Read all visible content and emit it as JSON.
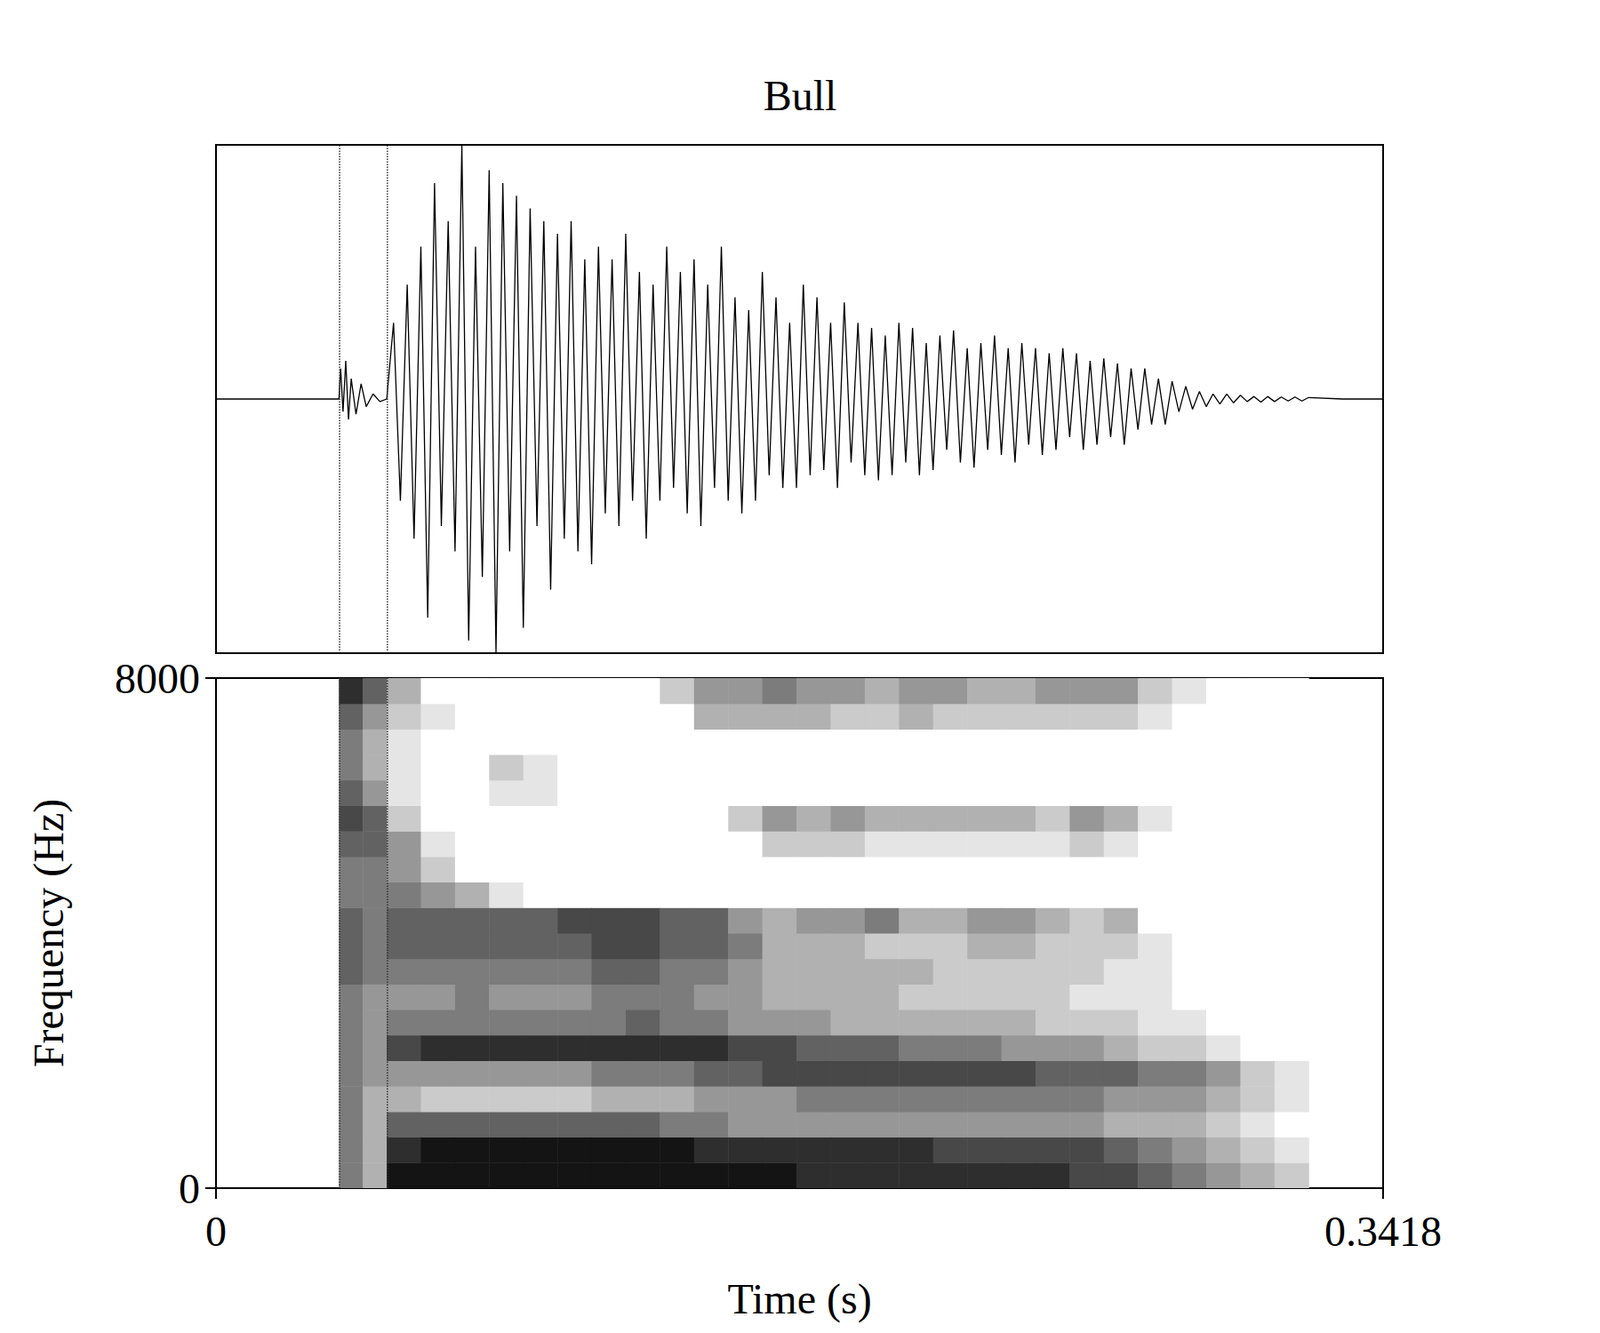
{
  "chart_data": [
    {
      "type": "line",
      "title": "Bull",
      "color": "#000000",
      "tick_labels": false,
      "xlim": [
        0,
        0.3418
      ],
      "ylim": [
        -1,
        1
      ],
      "boundaries": [
        0.0362,
        0.0502
      ],
      "x": [
        0,
        0.036,
        0.0365,
        0.0372,
        0.038,
        0.0388,
        0.0396,
        0.041,
        0.0425,
        0.044,
        0.046,
        0.048,
        0.05,
        0.052,
        0.054,
        0.056,
        0.058,
        0.06,
        0.062,
        0.064,
        0.066,
        0.068,
        0.07,
        0.072,
        0.074,
        0.076,
        0.078,
        0.08,
        0.082,
        0.084,
        0.086,
        0.088,
        0.09,
        0.092,
        0.094,
        0.096,
        0.098,
        0.1,
        0.102,
        0.104,
        0.106,
        0.108,
        0.11,
        0.112,
        0.114,
        0.116,
        0.118,
        0.12,
        0.122,
        0.124,
        0.126,
        0.128,
        0.13,
        0.132,
        0.134,
        0.136,
        0.138,
        0.14,
        0.142,
        0.144,
        0.146,
        0.148,
        0.15,
        0.152,
        0.154,
        0.156,
        0.158,
        0.16,
        0.162,
        0.164,
        0.166,
        0.168,
        0.17,
        0.172,
        0.174,
        0.176,
        0.178,
        0.18,
        0.182,
        0.184,
        0.186,
        0.188,
        0.19,
        0.192,
        0.194,
        0.196,
        0.198,
        0.2,
        0.202,
        0.204,
        0.206,
        0.208,
        0.21,
        0.212,
        0.214,
        0.216,
        0.218,
        0.22,
        0.222,
        0.224,
        0.226,
        0.228,
        0.23,
        0.232,
        0.234,
        0.236,
        0.238,
        0.24,
        0.242,
        0.244,
        0.246,
        0.248,
        0.25,
        0.252,
        0.254,
        0.256,
        0.258,
        0.26,
        0.262,
        0.264,
        0.266,
        0.268,
        0.27,
        0.272,
        0.274,
        0.276,
        0.278,
        0.28,
        0.282,
        0.284,
        0.286,
        0.288,
        0.29,
        0.292,
        0.294,
        0.296,
        0.298,
        0.3,
        0.302,
        0.304,
        0.306,
        0.308,
        0.31,
        0.312,
        0.314,
        0.316,
        0.318,
        0.32,
        0.33,
        0.3418
      ],
      "values": [
        0,
        0,
        0.12,
        -0.05,
        0.15,
        -0.08,
        0.08,
        -0.06,
        0.06,
        -0.03,
        0.02,
        -0.01,
        0,
        0.3,
        -0.4,
        0.45,
        -0.55,
        0.6,
        -0.86,
        0.85,
        -0.5,
        0.7,
        -0.6,
        1.0,
        -0.95,
        0.6,
        -0.7,
        0.9,
        -1.0,
        0.85,
        -0.6,
        0.8,
        -0.9,
        0.75,
        -0.5,
        0.7,
        -0.75,
        0.65,
        -0.55,
        0.7,
        -0.6,
        0.55,
        -0.65,
        0.6,
        -0.45,
        0.55,
        -0.5,
        0.65,
        -0.4,
        0.5,
        -0.55,
        0.45,
        -0.4,
        0.6,
        -0.35,
        0.5,
        -0.45,
        0.55,
        -0.5,
        0.45,
        -0.35,
        0.6,
        -0.4,
        0.4,
        -0.45,
        0.35,
        -0.4,
        0.5,
        -0.3,
        0.4,
        -0.35,
        0.3,
        -0.35,
        0.45,
        -0.3,
        0.4,
        -0.28,
        0.3,
        -0.35,
        0.38,
        -0.25,
        0.3,
        -0.3,
        0.28,
        -0.32,
        0.25,
        -0.3,
        0.3,
        -0.25,
        0.28,
        -0.3,
        0.22,
        -0.28,
        0.25,
        -0.2,
        0.27,
        -0.25,
        0.2,
        -0.27,
        0.22,
        -0.2,
        0.25,
        -0.22,
        0.2,
        -0.25,
        0.22,
        -0.18,
        0.2,
        -0.22,
        0.18,
        -0.2,
        0.2,
        -0.15,
        0.18,
        -0.2,
        0.15,
        -0.18,
        0.16,
        -0.15,
        0.14,
        -0.18,
        0.12,
        -0.12,
        0.12,
        -0.1,
        0.08,
        -0.1,
        0.07,
        -0.05,
        0.05,
        -0.04,
        0.03,
        -0.03,
        0.02,
        -0.02,
        0.02,
        -0.015,
        0.015,
        -0.01,
        0.01,
        -0.012,
        0.01,
        -0.01,
        0.008,
        -0.008,
        0.008,
        -0.008,
        0.006,
        0,
        0
      ]
    },
    {
      "type": "heatmap",
      "xlabel": "Time (s)",
      "ylabel": "Frequency (Hz)",
      "xlim": [
        0,
        0.3418
      ],
      "xticks": [
        0,
        0.3418
      ],
      "ylim": [
        0,
        8000
      ],
      "yticks": [
        0,
        8000
      ],
      "boundaries": [
        0.0362,
        0.0502
      ],
      "time_edges": [
        0.036,
        0.043,
        0.05,
        0.06,
        0.07,
        0.08,
        0.09,
        0.1,
        0.11,
        0.12,
        0.13,
        0.14,
        0.15,
        0.16,
        0.17,
        0.18,
        0.19,
        0.2,
        0.21,
        0.22,
        0.23,
        0.24,
        0.25,
        0.26,
        0.27,
        0.28,
        0.29,
        0.3,
        0.31,
        0.32
      ],
      "freq_edges": [
        0,
        400,
        800,
        1200,
        1600,
        2000,
        2400,
        2800,
        3200,
        3600,
        4000,
        4400,
        4800,
        5200,
        5600,
        6000,
        6400,
        6800,
        7200,
        7600,
        8000
      ],
      "cells": [
        [
          5,
          5,
          5,
          5,
          5,
          5,
          5,
          5,
          6,
          6,
          6,
          5,
          5,
          6,
          7,
          6,
          5,
          5,
          6,
          8
        ],
        [
          3,
          3,
          3,
          3,
          4,
          4,
          4,
          4,
          5,
          5,
          5,
          5,
          5,
          6,
          6,
          4,
          3,
          3,
          4,
          6
        ],
        [
          9,
          8,
          6,
          3,
          4,
          7,
          5,
          4,
          5,
          6,
          6,
          5,
          4,
          4,
          2,
          1,
          1,
          1,
          2,
          3
        ],
        [
          9,
          9,
          6,
          2,
          4,
          8,
          5,
          4,
          5,
          6,
          6,
          4,
          2,
          1,
          0,
          0,
          0,
          0,
          1,
          0
        ],
        [
          9,
          9,
          6,
          2,
          4,
          8,
          5,
          5,
          5,
          6,
          6,
          3,
          0,
          0,
          0,
          0,
          0,
          0,
          0,
          0
        ],
        [
          9,
          9,
          6,
          2,
          4,
          8,
          5,
          4,
          5,
          6,
          6,
          1,
          0,
          0,
          0,
          1,
          2,
          0,
          0,
          0
        ],
        [
          9,
          9,
          6,
          2,
          4,
          8,
          5,
          4,
          5,
          6,
          6,
          0,
          0,
          0,
          0,
          1,
          1,
          0,
          0,
          0
        ],
        [
          9,
          9,
          6,
          2,
          4,
          8,
          5,
          4,
          5,
          6,
          7,
          0,
          0,
          0,
          0,
          0,
          0,
          0,
          0,
          0
        ],
        [
          9,
          9,
          6,
          3,
          5,
          8,
          5,
          5,
          6,
          7,
          7,
          0,
          0,
          0,
          0,
          0,
          0,
          0,
          0,
          0
        ],
        [
          9,
          9,
          6,
          3,
          5,
          8,
          6,
          5,
          6,
          7,
          7,
          0,
          0,
          0,
          0,
          0,
          0,
          0,
          0,
          0
        ],
        [
          9,
          9,
          5,
          3,
          5,
          8,
          5,
          5,
          5,
          6,
          6,
          0,
          0,
          0,
          0,
          0,
          0,
          0,
          0,
          2
        ],
        [
          9,
          8,
          5,
          4,
          6,
          8,
          5,
          4,
          5,
          6,
          6,
          0,
          0,
          0,
          0,
          0,
          0,
          0,
          3,
          4
        ],
        [
          9,
          8,
          4,
          4,
          6,
          7,
          4,
          4,
          4,
          5,
          4,
          0,
          0,
          0,
          2,
          0,
          0,
          0,
          3,
          4
        ],
        [
          9,
          8,
          4,
          4,
          7,
          7,
          4,
          3,
          3,
          3,
          3,
          0,
          0,
          2,
          4,
          0,
          0,
          0,
          3,
          5
        ],
        [
          8,
          8,
          4,
          5,
          7,
          6,
          4,
          3,
          3,
          3,
          4,
          0,
          0,
          2,
          3,
          0,
          0,
          0,
          3,
          4
        ],
        [
          8,
          8,
          4,
          5,
          7,
          6,
          3,
          3,
          3,
          3,
          4,
          0,
          0,
          2,
          4,
          0,
          0,
          0,
          2,
          4
        ],
        [
          8,
          8,
          4,
          5,
          7,
          6,
          3,
          3,
          3,
          2,
          5,
          0,
          0,
          1,
          3,
          0,
          0,
          0,
          2,
          3
        ],
        [
          8,
          8,
          4,
          5,
          7,
          5,
          3,
          2,
          3,
          2,
          3,
          0,
          0,
          1,
          3,
          0,
          0,
          0,
          3,
          4
        ],
        [
          8,
          7,
          4,
          5,
          7,
          5,
          3,
          2,
          2,
          2,
          3,
          0,
          0,
          1,
          3,
          0,
          0,
          0,
          2,
          4
        ],
        [
          8,
          7,
          4,
          5,
          7,
          5,
          3,
          2,
          2,
          3,
          4,
          0,
          0,
          1,
          3,
          0,
          0,
          0,
          2,
          3
        ],
        [
          8,
          7,
          4,
          5,
          7,
          4,
          3,
          2,
          2,
          3,
          4,
          0,
          0,
          1,
          3,
          0,
          0,
          0,
          2,
          3
        ],
        [
          8,
          7,
          4,
          5,
          6,
          4,
          2,
          2,
          2,
          2,
          3,
          0,
          0,
          1,
          2,
          0,
          0,
          0,
          2,
          4
        ],
        [
          7,
          7,
          4,
          5,
          6,
          4,
          2,
          1,
          2,
          2,
          2,
          0,
          0,
          2,
          4,
          0,
          0,
          0,
          2,
          4
        ],
        [
          7,
          6,
          3,
          4,
          6,
          3,
          2,
          1,
          1,
          2,
          3,
          0,
          0,
          1,
          3,
          0,
          0,
          0,
          2,
          4
        ],
        [
          6,
          5,
          3,
          4,
          5,
          2,
          1,
          1,
          1,
          1,
          0,
          0,
          0,
          0,
          1,
          0,
          0,
          0,
          1,
          2
        ],
        [
          5,
          4,
          3,
          4,
          5,
          2,
          1,
          0,
          0,
          0,
          0,
          0,
          0,
          0,
          0,
          0,
          0,
          0,
          0,
          1
        ],
        [
          4,
          3,
          2,
          3,
          4,
          1,
          0,
          0,
          0,
          0,
          0,
          0,
          0,
          0,
          0,
          0,
          0,
          0,
          0,
          0
        ],
        [
          3,
          2,
          1,
          2,
          2,
          0,
          0,
          0,
          0,
          0,
          0,
          0,
          0,
          0,
          0,
          0,
          0,
          0,
          0,
          0
        ],
        [
          2,
          1,
          0,
          1,
          1,
          0,
          0,
          0,
          0,
          0,
          0,
          0,
          0,
          0,
          0,
          0,
          0,
          0,
          0,
          0
        ]
      ]
    }
  ]
}
